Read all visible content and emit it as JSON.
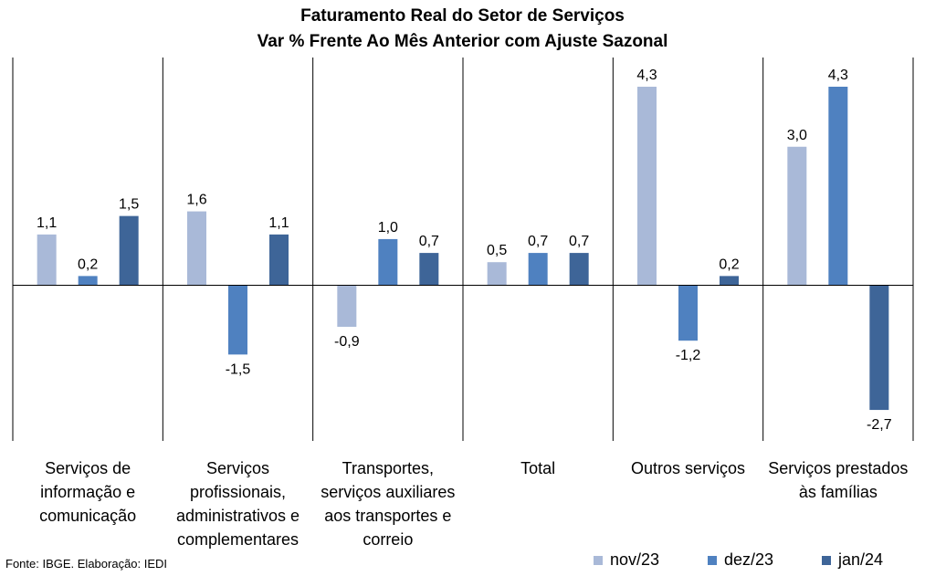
{
  "title_line1": "Faturamento Real do Setor de Serviços",
  "title_line2": "Var % Frente Ao Mês Anterior com Ajuste Sazonal",
  "source": "Fonte: IBGE. Elaboração: IEDI",
  "colors": {
    "nov/23": "#a9b9d8",
    "dez/23": "#4f81c0",
    "jan/24": "#3e6598"
  },
  "chart_data": {
    "type": "bar",
    "title": "Faturamento Real do Setor de Serviços - Var % Frente Ao Mês Anterior com Ajuste Sazonal",
    "categories": [
      [
        "Serviços de",
        "informação e",
        "comunicação"
      ],
      [
        "Serviços",
        "profissionais,",
        "administrativos e",
        "complementares"
      ],
      [
        "Transportes,",
        "serviços auxiliares",
        "aos transportes e",
        "correio"
      ],
      [
        "Total"
      ],
      [
        "Outros serviços"
      ],
      [
        "Serviços prestados",
        "às famílias"
      ]
    ],
    "series": [
      {
        "name": "nov/23",
        "values": [
          1.1,
          1.6,
          -0.9,
          0.5,
          4.3,
          3.0
        ],
        "labels": [
          "1,1",
          "1,6",
          "-0,9",
          "0,5",
          "4,3",
          "3,0"
        ]
      },
      {
        "name": "dez/23",
        "values": [
          0.2,
          -1.5,
          1.0,
          0.7,
          -1.2,
          4.3
        ],
        "labels": [
          "0,2",
          "-1,5",
          "1,0",
          "0,7",
          "-1,2",
          "4,3"
        ]
      },
      {
        "name": "jan/24",
        "values": [
          1.5,
          1.1,
          0.7,
          0.7,
          0.2,
          -2.7
        ],
        "labels": [
          "1,5",
          "1,1",
          "0,7",
          "0,7",
          "0,2",
          "-2,7"
        ]
      }
    ],
    "legend": "bottom-right",
    "grid": false
  }
}
